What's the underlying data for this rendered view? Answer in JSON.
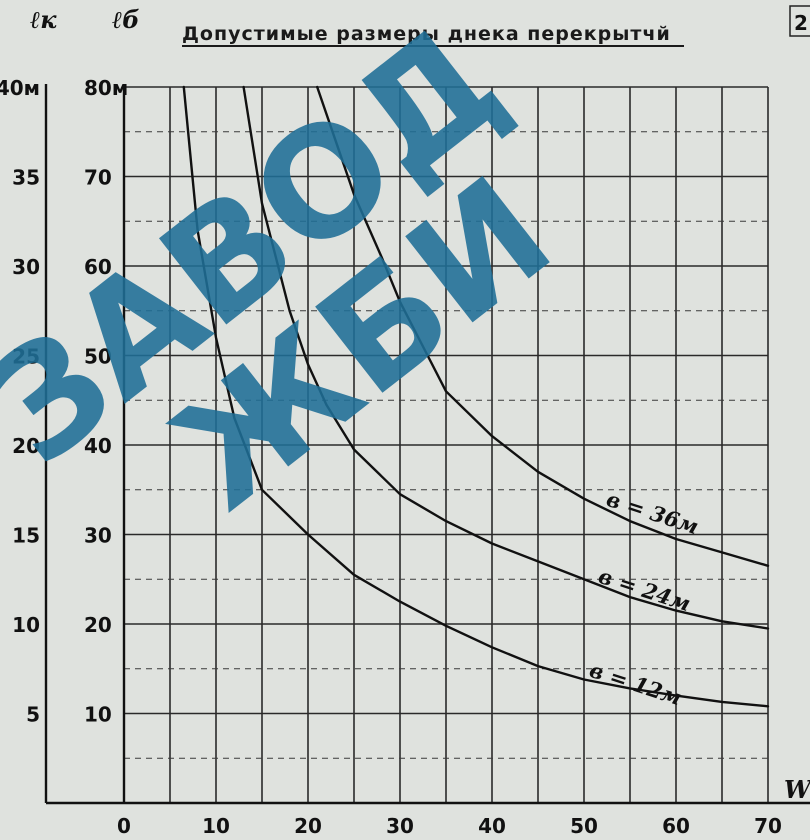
{
  "page_number": "2",
  "chart_data": {
    "type": "line",
    "title": "Допустимые размеры днека перекрытчй",
    "xlabel": "W",
    "ylabel_left": "ℓк",
    "ylabel_right": "ℓб",
    "xlim": [
      0,
      70
    ],
    "ylim": [
      0,
      80
    ],
    "x_ticks": [
      "0",
      "10",
      "20",
      "30",
      "40",
      "50",
      "60",
      "70"
    ],
    "y_ticks": [
      "10",
      "20",
      "30",
      "40",
      "50",
      "60",
      "70",
      "80м"
    ],
    "y2_ticks": [
      "5",
      "10",
      "15",
      "20",
      "25",
      "30",
      "35",
      "40м"
    ],
    "y2_ratio": 0.5,
    "grid": true,
    "series": [
      {
        "name": "в = 12м",
        "x": [
          6.5,
          8,
          10,
          12,
          15,
          20,
          25,
          30,
          35,
          40,
          45,
          50,
          55,
          60,
          65,
          70
        ],
        "y": [
          80,
          64,
          52,
          43,
          35,
          30,
          25.5,
          22.5,
          19.8,
          17.4,
          15.3,
          13.8,
          12.8,
          12,
          11.3,
          10.8
        ]
      },
      {
        "name": "в = 24м",
        "x": [
          13,
          15,
          18,
          20,
          22,
          25,
          30,
          35,
          40,
          45,
          50,
          55,
          60,
          65,
          70
        ],
        "y": [
          80,
          67,
          55,
          49,
          44.5,
          39.5,
          34.5,
          31.5,
          29,
          27,
          25,
          23,
          21.5,
          20.3,
          19.5
        ]
      },
      {
        "name": "в = 36м",
        "x": [
          21,
          23,
          25,
          28,
          30,
          33,
          35,
          40,
          45,
          50,
          55,
          60,
          65,
          70
        ],
        "y": [
          80,
          74,
          68,
          61,
          56,
          50,
          46,
          41,
          37,
          34,
          31.5,
          29.5,
          28,
          26.5
        ]
      }
    ]
  },
  "watermark": {
    "lines": [
      "ЗАВОД",
      "ЖБИ"
    ],
    "color": "#1f6f97"
  }
}
